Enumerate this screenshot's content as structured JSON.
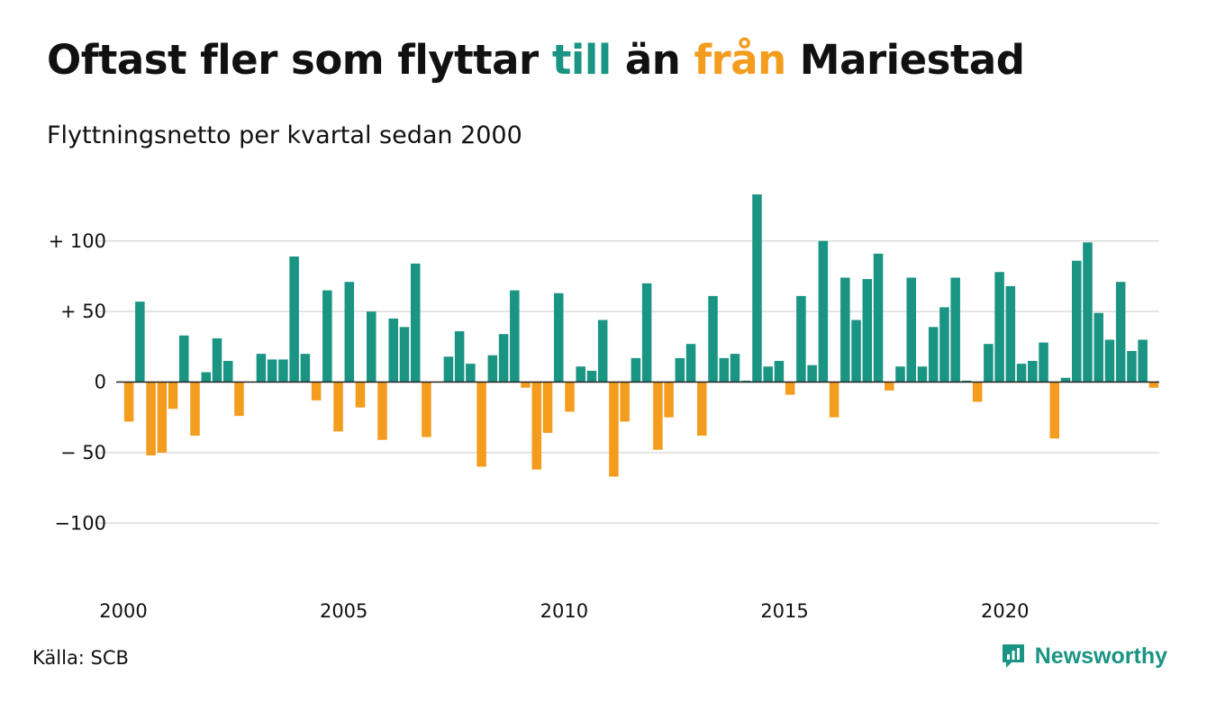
{
  "header": {
    "title_part1": "Oftast fler som flyttar ",
    "title_pos_word": "till",
    "title_part2": " än ",
    "title_neg_word": "från",
    "title_part3": " Mariestad",
    "subtitle": "Flyttningsnetto per kvartal sedan 2000"
  },
  "footer": {
    "source": "Källa: SCB",
    "brand": "Newsworthy"
  },
  "colors": {
    "positive": "#1a9483",
    "negative": "#f39c1d",
    "grid": "#dcdcdc",
    "zero_line": "#222222"
  },
  "chart_data": {
    "type": "bar",
    "title": "Oftast fler som flyttar till än från Mariestad",
    "subtitle": "Flyttningsnetto per kvartal sedan 2000",
    "x_start": "2000 Q1",
    "frequency": "quarterly",
    "values": [
      -28,
      57,
      -52,
      -50,
      -19,
      33,
      -38,
      7,
      31,
      15,
      -24,
      0,
      20,
      16,
      16,
      89,
      20,
      -13,
      65,
      -35,
      71,
      -18,
      50,
      -41,
      45,
      39,
      84,
      -39,
      0,
      18,
      36,
      13,
      -60,
      19,
      34,
      65,
      -4,
      -62,
      -36,
      63,
      -21,
      11,
      8,
      44,
      -67,
      -28,
      17,
      70,
      -48,
      -25,
      17,
      27,
      -38,
      61,
      17,
      20,
      1,
      133,
      11,
      15,
      -9,
      61,
      12,
      100,
      -25,
      74,
      44,
      73,
      91,
      -6,
      11,
      74,
      11,
      39,
      53,
      74,
      1,
      -14,
      27,
      78,
      68,
      13,
      15,
      28,
      -40,
      3,
      86,
      99,
      49,
      30,
      71,
      22,
      30,
      -4
    ],
    "ylim": [
      -140,
      140
    ],
    "yticks": [
      100,
      50,
      0,
      -50,
      -100
    ],
    "ytick_labels": [
      "+ 100",
      "+  50",
      "0",
      "− 50",
      "−100"
    ],
    "xticks": [
      "2000",
      "2005",
      "2010",
      "2015",
      "2020"
    ],
    "grid": true,
    "legend": "none"
  }
}
